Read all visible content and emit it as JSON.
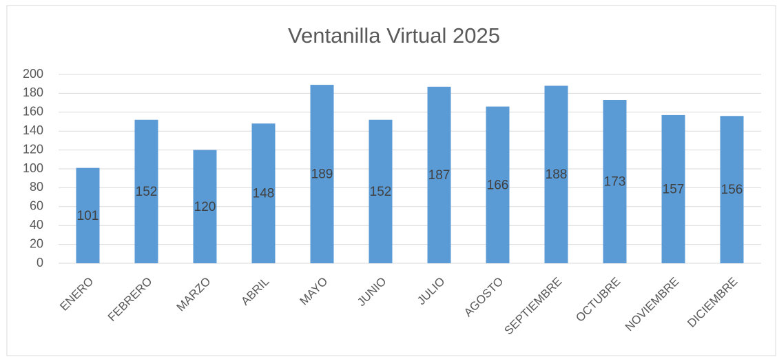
{
  "chart_data": {
    "type": "bar",
    "title": "Ventanilla Virtual 2025",
    "categories": [
      "ENERO",
      "FEBRERO",
      "MARZO",
      "ABRIL",
      "MAYO",
      "JUNIO",
      "JULIO",
      "AGOSTO",
      "SEPTIEMBRE",
      "OCTUBRE",
      "NOVIEMBRE",
      "DICIEMBRE"
    ],
    "values": [
      101,
      152,
      120,
      148,
      189,
      152,
      187,
      166,
      188,
      173,
      157,
      156
    ],
    "color": "#5b9bd5",
    "ylim": [
      0,
      200
    ],
    "yticks": [
      0,
      20,
      40,
      60,
      80,
      100,
      120,
      140,
      160,
      180,
      200
    ],
    "grid": true
  }
}
